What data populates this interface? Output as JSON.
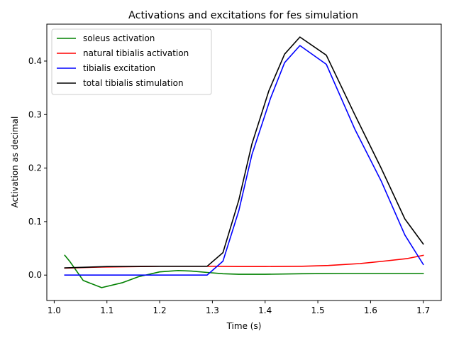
{
  "chart_data": {
    "type": "line",
    "title": "Activations and excitations for fes simulation",
    "xlabel": "Time (s)",
    "ylabel": "Activation as decimal",
    "xlim": [
      0.986,
      1.734
    ],
    "ylim": [
      -0.0475,
      0.469
    ],
    "xticks": [
      1.0,
      1.1,
      1.2,
      1.3,
      1.4,
      1.5,
      1.6,
      1.7
    ],
    "xtick_labels": [
      "1.0",
      "1.1",
      "1.2",
      "1.3",
      "1.4",
      "1.5",
      "1.6",
      "1.7"
    ],
    "yticks": [
      0.0,
      0.1,
      0.2,
      0.3,
      0.4
    ],
    "ytick_labels": [
      "0.0",
      "0.1",
      "0.2",
      "0.3",
      "0.4"
    ],
    "grid": false,
    "legend_position": "top-left",
    "series": [
      {
        "name": "soleus activation",
        "color": "#008000",
        "x": [
          1.02,
          1.03,
          1.055,
          1.09,
          1.13,
          1.16,
          1.2,
          1.235,
          1.26,
          1.29,
          1.32,
          1.35,
          1.4,
          1.47,
          1.55,
          1.7
        ],
        "y": [
          0.037,
          0.025,
          -0.01,
          -0.0235,
          -0.014,
          -0.003,
          0.006,
          0.0085,
          0.0075,
          0.005,
          0.0025,
          0.0015,
          0.0015,
          0.0025,
          0.003,
          0.003
        ]
      },
      {
        "name": "natural tibialis activation",
        "color": "#ff0000",
        "x": [
          1.02,
          1.09,
          1.2,
          1.3,
          1.35,
          1.4,
          1.47,
          1.52,
          1.58,
          1.62,
          1.67,
          1.7
        ],
        "y": [
          0.013,
          0.015,
          0.0165,
          0.0165,
          0.016,
          0.016,
          0.0165,
          0.018,
          0.0215,
          0.0255,
          0.031,
          0.037
        ]
      },
      {
        "name": "tibialis excitation",
        "color": "#0000ff",
        "x": [
          1.02,
          1.1,
          1.2,
          1.29,
          1.32,
          1.35,
          1.375,
          1.41,
          1.437,
          1.466,
          1.516,
          1.57,
          1.62,
          1.665,
          1.7
        ],
        "y": [
          0.0,
          0.0,
          0.0,
          0.0,
          0.026,
          0.12,
          0.225,
          0.33,
          0.397,
          0.429,
          0.394,
          0.273,
          0.176,
          0.075,
          0.02
        ]
      },
      {
        "name": "total tibialis stimulation",
        "color": "#000000",
        "x": [
          1.02,
          1.1,
          1.2,
          1.29,
          1.32,
          1.35,
          1.375,
          1.407,
          1.437,
          1.466,
          1.516,
          1.57,
          1.62,
          1.665,
          1.7
        ],
        "y": [
          0.0135,
          0.016,
          0.0165,
          0.0165,
          0.042,
          0.14,
          0.245,
          0.344,
          0.413,
          0.445,
          0.411,
          0.3,
          0.2,
          0.105,
          0.058
        ]
      }
    ]
  }
}
